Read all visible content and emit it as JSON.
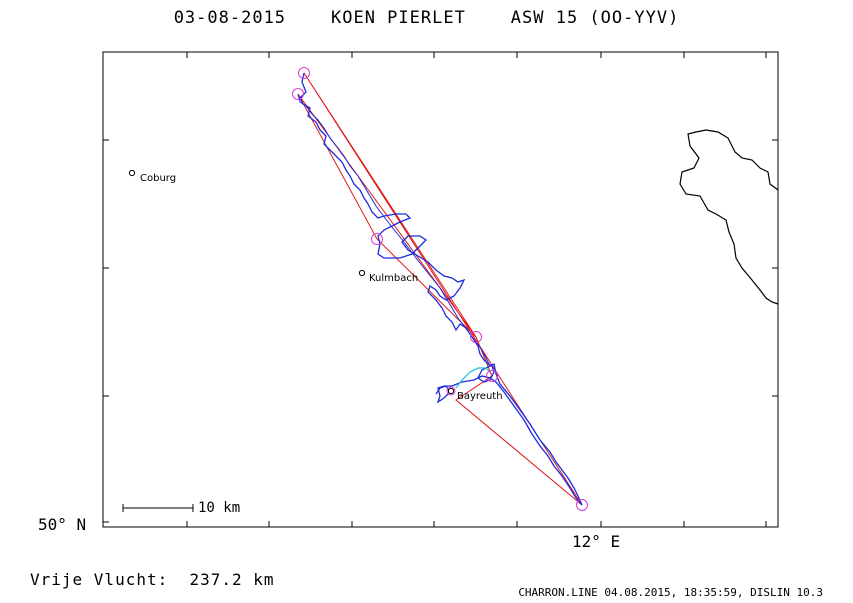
{
  "header": {
    "date": "03-08-2015",
    "pilot": "KOEN PIERLET",
    "glider": "ASW 15 (OO-YYV)"
  },
  "axes": {
    "lat_label": "50° N",
    "lon_label": "12° E"
  },
  "scale": {
    "label": "10 km"
  },
  "cities": [
    {
      "name": "Coburg"
    },
    {
      "name": "Kulmbach"
    },
    {
      "name": "Bayreuth"
    }
  ],
  "summary": {
    "label": "Vrije Vlucht:",
    "distance": "237.2 km"
  },
  "footer": {
    "file": "CHARRON.LINE",
    "date": "04.08.2015,",
    "time": "18:35:59,",
    "software": "DISLIN 10.3"
  },
  "colors": {
    "track": "#1c2bdc",
    "route": "#e01818",
    "turnpoint": "#d23cd2",
    "track_alt": "#22c8d8",
    "frame": "#000000"
  }
}
